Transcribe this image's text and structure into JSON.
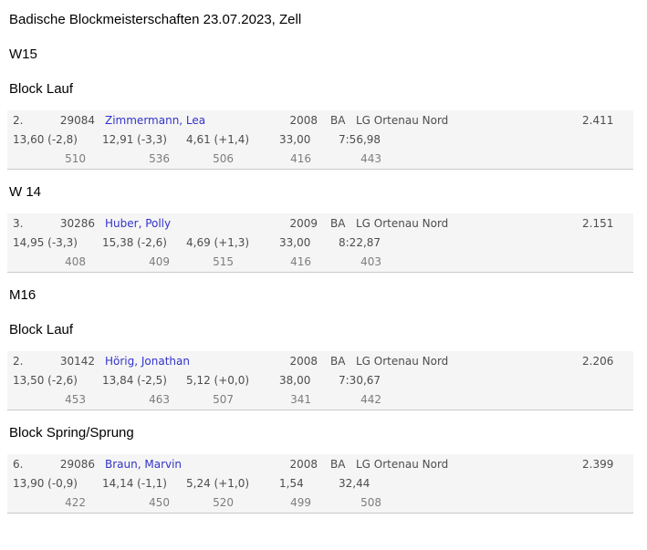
{
  "page": {
    "title": "Badische Blockmeisterschaften 23.07.2023, Zell"
  },
  "headings": {
    "group_w15": "W15",
    "event_block_lauf_w15": "Block Lauf",
    "group_w14": "W 14",
    "group_m16": "M16",
    "event_block_lauf_m16": "Block Lauf",
    "event_block_sprung_m16": "Block Spring/Sprung"
  },
  "colors": {
    "athlete_link": "#3333cc",
    "row_background": "#f5f5f5",
    "row_border": "#c9c9c9"
  },
  "results": [
    {
      "rank": "2.",
      "bib": "29084",
      "name": "Zimmermann, Lea",
      "yob": "2008",
      "state": "BA",
      "club": "LG Ortenau Nord",
      "points": "2.411",
      "performances": [
        "13,60 (-2,8)",
        "12,91 (-3,3)",
        "4,61 (+1,4)",
        "33,00",
        "7:56,98"
      ],
      "scores": [
        "510",
        "536",
        "506",
        "416",
        "443"
      ]
    },
    {
      "rank": "3.",
      "bib": "30286",
      "name": "Huber, Polly",
      "yob": "2009",
      "state": "BA",
      "club": "LG Ortenau Nord",
      "points": "2.151",
      "performances": [
        "14,95 (-3,3)",
        "15,38 (-2,6)",
        "4,69 (+1,3)",
        "33,00",
        "8:22,87"
      ],
      "scores": [
        "408",
        "409",
        "515",
        "416",
        "403"
      ]
    },
    {
      "rank": "2.",
      "bib": "30142",
      "name": "Hörig, Jonathan",
      "yob": "2008",
      "state": "BA",
      "club": "LG Ortenau Nord",
      "points": "2.206",
      "performances": [
        "13,50 (-2,6)",
        "13,84 (-2,5)",
        "5,12 (+0,0)",
        "38,00",
        "7:30,67"
      ],
      "scores": [
        "453",
        "463",
        "507",
        "341",
        "442"
      ]
    },
    {
      "rank": "6.",
      "bib": "29086",
      "name": "Braun, Marvin",
      "yob": "2008",
      "state": "BA",
      "club": "LG Ortenau Nord",
      "points": "2.399",
      "performances": [
        "13,90 (-0,9)",
        "14,14 (-1,1)",
        "5,24 (+1,0)",
        "1,54",
        "32,44"
      ],
      "scores": [
        "422",
        "450",
        "520",
        "499",
        "508"
      ]
    }
  ]
}
